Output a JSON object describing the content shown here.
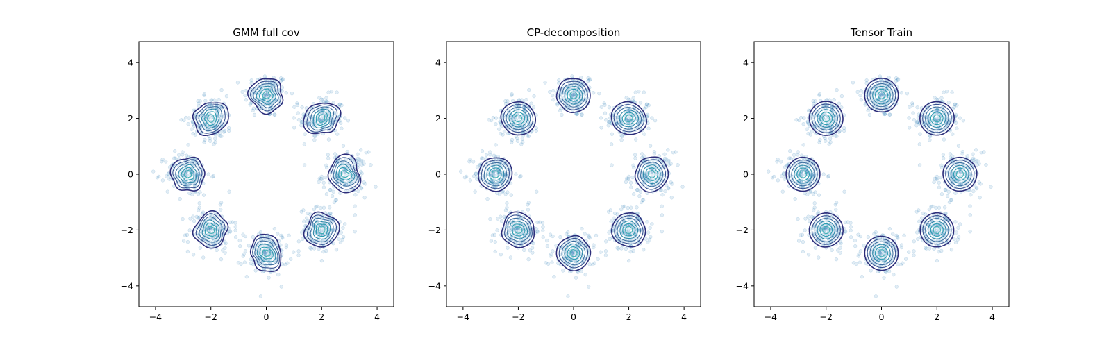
{
  "chart_data": [
    {
      "type": "scatter",
      "title": "GMM full cov",
      "xlim": [
        -4.6,
        4.6
      ],
      "ylim": [
        -4.75,
        4.75
      ],
      "xticks": [
        -4,
        -2,
        0,
        2,
        4
      ],
      "yticks": [
        -4,
        -2,
        0,
        2,
        4
      ],
      "xtick_labels": [
        "−4",
        "−2",
        "0",
        "2",
        "4"
      ],
      "ytick_labels": [
        "−4",
        "−2",
        "0",
        "2",
        "4"
      ],
      "grid": false,
      "cluster_centers": [
        [
          0,
          2.83
        ],
        [
          2,
          2
        ],
        [
          2.83,
          0
        ],
        [
          2,
          -2
        ],
        [
          0,
          -2.83
        ],
        [
          -2,
          -2
        ],
        [
          -2.83,
          0
        ],
        [
          -2,
          2
        ]
      ],
      "cluster_spread": 0.4,
      "points_per_cluster": 150,
      "contour_levels": 6,
      "contour_shape": "irregular",
      "scatter_color": "#1f77b4",
      "contour_colors": [
        "#2c2d7a",
        "#36508f",
        "#3e6fa0",
        "#2e88a8",
        "#2a9cb0",
        "#3fb0b5"
      ]
    },
    {
      "type": "scatter",
      "title": "CP-decomposition",
      "xlim": [
        -4.6,
        4.6
      ],
      "ylim": [
        -4.75,
        4.75
      ],
      "xticks": [
        -4,
        -2,
        0,
        2,
        4
      ],
      "yticks": [
        -4,
        -2,
        0,
        2,
        4
      ],
      "xtick_labels": [
        "−4",
        "−2",
        "0",
        "2",
        "4"
      ],
      "ytick_labels": [
        "−4",
        "−2",
        "0",
        "2",
        "4"
      ],
      "grid": false,
      "cluster_centers": [
        [
          0,
          2.83
        ],
        [
          2,
          2
        ],
        [
          2.83,
          0
        ],
        [
          2,
          -2
        ],
        [
          0,
          -2.83
        ],
        [
          -2,
          -2
        ],
        [
          -2.83,
          0
        ],
        [
          -2,
          2
        ]
      ],
      "cluster_spread": 0.4,
      "points_per_cluster": 150,
      "contour_levels": 6,
      "contour_shape": "slightly-irregular",
      "scatter_color": "#1f77b4",
      "contour_colors": [
        "#2c2d7a",
        "#36508f",
        "#3e6fa0",
        "#2e88a8",
        "#2a9cb0",
        "#3fb0b5"
      ]
    },
    {
      "type": "scatter",
      "title": "Tensor Train",
      "xlim": [
        -4.6,
        4.6
      ],
      "ylim": [
        -4.75,
        4.75
      ],
      "xticks": [
        -4,
        -2,
        0,
        2,
        4
      ],
      "yticks": [
        -4,
        -2,
        0,
        2,
        4
      ],
      "xtick_labels": [
        "−4",
        "−2",
        "0",
        "2",
        "4"
      ],
      "ytick_labels": [
        "−4",
        "−2",
        "0",
        "2",
        "4"
      ],
      "grid": false,
      "cluster_centers": [
        [
          0,
          2.83
        ],
        [
          2,
          2
        ],
        [
          2.83,
          0
        ],
        [
          2,
          -2
        ],
        [
          0,
          -2.83
        ],
        [
          -2,
          -2
        ],
        [
          -2.83,
          0
        ],
        [
          -2,
          2
        ]
      ],
      "cluster_spread": 0.4,
      "points_per_cluster": 150,
      "contour_levels": 6,
      "contour_shape": "circular",
      "scatter_color": "#1f77b4",
      "contour_colors": [
        "#2c2d7a",
        "#36508f",
        "#3e6fa0",
        "#2e88a8",
        "#2a9cb0",
        "#3fb0b5"
      ]
    }
  ]
}
